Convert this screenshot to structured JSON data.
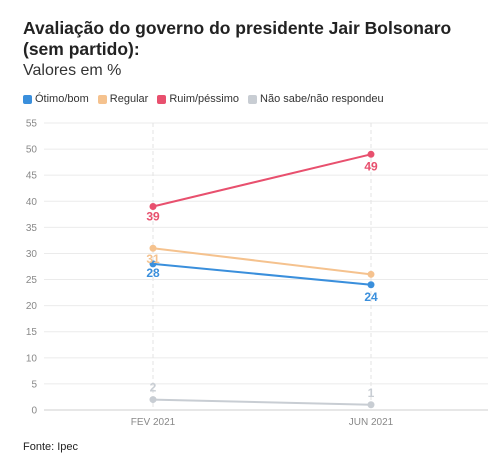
{
  "chart_data": {
    "type": "line",
    "title": "Avaliação do governo do presidente Jair Bolsonaro (sem partido):",
    "subtitle": "Valores em %",
    "categories": [
      "FEV 2021",
      "JUN 2021"
    ],
    "ylim": [
      0,
      55
    ],
    "yticks": [
      0,
      5,
      10,
      15,
      20,
      25,
      30,
      35,
      40,
      45,
      50,
      55
    ],
    "grid": true,
    "legend_position": "top-left",
    "series": [
      {
        "name": "Ótimo/bom",
        "color": "#3a8fdc",
        "values": [
          28,
          24
        ]
      },
      {
        "name": "Regular",
        "color": "#f5c28e",
        "values": [
          31,
          26
        ]
      },
      {
        "name": "Ruim/péssimo",
        "color": "#e8506e",
        "values": [
          39,
          49
        ]
      },
      {
        "name": "Não sabe/não respondeu",
        "color": "#c8cdd3",
        "values": [
          2,
          1
        ]
      }
    ],
    "source": "Fonte: Ipec"
  }
}
